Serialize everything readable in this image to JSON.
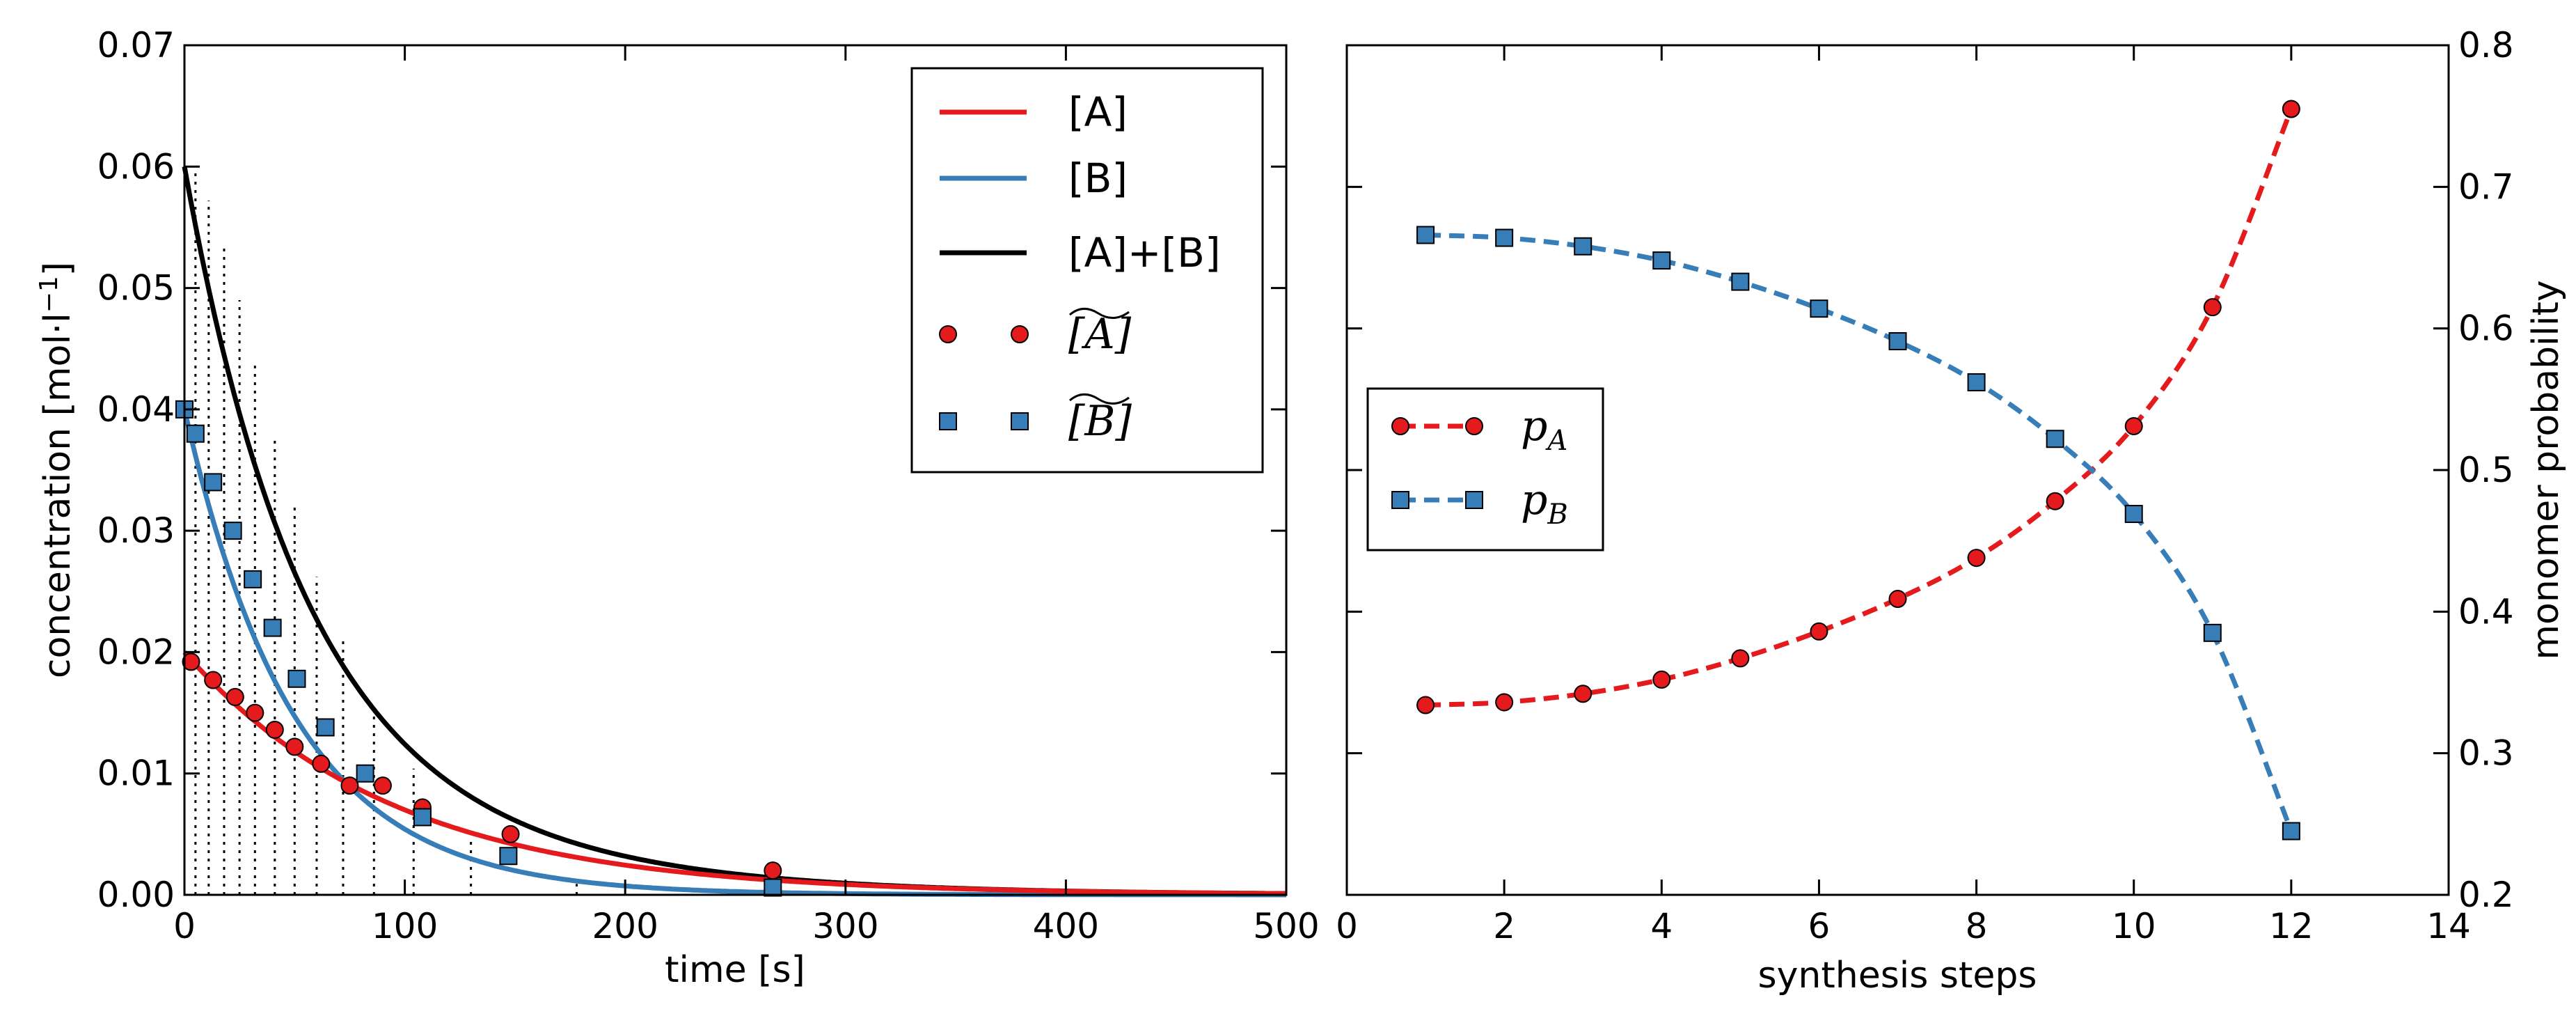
{
  "chart_data": [
    {
      "type": "line",
      "xlabel": "time [s]",
      "ylabel": "concentration [mol·l",
      "ylabel_exponent": "−1",
      "ylabel_close": "]",
      "xlim": [
        0,
        500
      ],
      "ylim": [
        0,
        0.07
      ],
      "xticks": [
        0,
        100,
        200,
        300,
        400,
        500
      ],
      "xtick_labels": [
        "0",
        "100",
        "200",
        "300",
        "400",
        "500"
      ],
      "yticks": [
        0,
        0.01,
        0.02,
        0.03,
        0.04,
        0.05,
        0.06,
        0.07
      ],
      "ytick_labels": [
        "0.00",
        "0.01",
        "0.02",
        "0.03",
        "0.04",
        "0.05",
        "0.06",
        "0.07"
      ],
      "legend_position": "top-right",
      "series": [
        {
          "name": "[A]",
          "style": "line",
          "color": "#e41a1c",
          "label": "[A]"
        },
        {
          "name": "[B]",
          "style": "line",
          "color": "#377eb8",
          "label": "[B]"
        },
        {
          "name": "[A]+[B]",
          "style": "line",
          "color": "#000000",
          "label": "[A]+[B]"
        },
        {
          "name": "~[A]",
          "style": "marker-circle",
          "color": "#e41a1c",
          "label": "[A]",
          "x": [
            3,
            13,
            23,
            32,
            41,
            50,
            62,
            75,
            90,
            108,
            148,
            267
          ],
          "y": [
            0.0192,
            0.0177,
            0.0163,
            0.015,
            0.0136,
            0.0122,
            0.0108,
            0.009,
            0.009,
            0.0072,
            0.005,
            0.002
          ]
        },
        {
          "name": "~[B]",
          "style": "marker-square",
          "color": "#377eb8",
          "label": "B",
          "x": [
            0,
            5,
            13,
            22,
            31,
            40,
            51,
            64,
            82,
            108,
            147,
            267
          ],
          "y": [
            0.04,
            0.038,
            0.034,
            0.03,
            0.026,
            0.022,
            0.0178,
            0.0138,
            0.01,
            0.0064,
            0.0032,
            0.0006
          ]
        },
        {
          "name": "sampling-lines",
          "style": "dotted-vertical",
          "color": "#000000",
          "x": [
            5,
            11,
            18,
            25,
            32,
            41,
            50,
            60,
            72,
            86,
            104,
            130,
            178
          ],
          "y": [
            0.0598,
            0.0572,
            0.0537,
            0.049,
            0.0436,
            0.0378,
            0.0319,
            0.0262,
            0.0211,
            0.0157,
            0.0104,
            0.0048,
            0.0009
          ]
        }
      ],
      "model": {
        "A0": 0.02,
        "B0": 0.04,
        "kA": 0.0105,
        "kB": 0.02
      }
    },
    {
      "type": "line",
      "xlabel": "synthesis steps",
      "ylabel": "monomer probability",
      "ylabel_side": "right",
      "xlim": [
        0,
        14
      ],
      "ylim": [
        0.2,
        0.8
      ],
      "xticks": [
        0,
        2,
        4,
        6,
        8,
        10,
        12,
        14
      ],
      "xtick_labels": [
        "0",
        "2",
        "4",
        "6",
        "8",
        "10",
        "12",
        "14"
      ],
      "yticks": [
        0.2,
        0.3,
        0.4,
        0.5,
        0.6,
        0.7,
        0.8
      ],
      "ytick_labels": [
        "0.2",
        "0.3",
        "0.4",
        "0.5",
        "0.6",
        "0.7",
        "0.8"
      ],
      "legend_position": "center-left",
      "series": [
        {
          "name": "p_A",
          "label": "p",
          "label_sub": "A",
          "style": "dashed-circle",
          "color": "#e41a1c",
          "x": [
            1,
            2,
            3,
            4,
            5,
            6,
            7,
            8,
            9,
            10,
            11,
            12
          ],
          "y": [
            0.334,
            0.336,
            0.342,
            0.352,
            0.367,
            0.386,
            0.409,
            0.438,
            0.478,
            0.531,
            0.615,
            0.755
          ]
        },
        {
          "name": "p_B",
          "label": "p",
          "label_sub": "B",
          "style": "dashed-square",
          "color": "#377eb8",
          "x": [
            1,
            2,
            3,
            4,
            5,
            6,
            7,
            8,
            9,
            10,
            11,
            12
          ],
          "y": [
            0.666,
            0.664,
            0.658,
            0.648,
            0.633,
            0.614,
            0.591,
            0.562,
            0.522,
            0.469,
            0.385,
            0.245
          ]
        }
      ]
    }
  ]
}
